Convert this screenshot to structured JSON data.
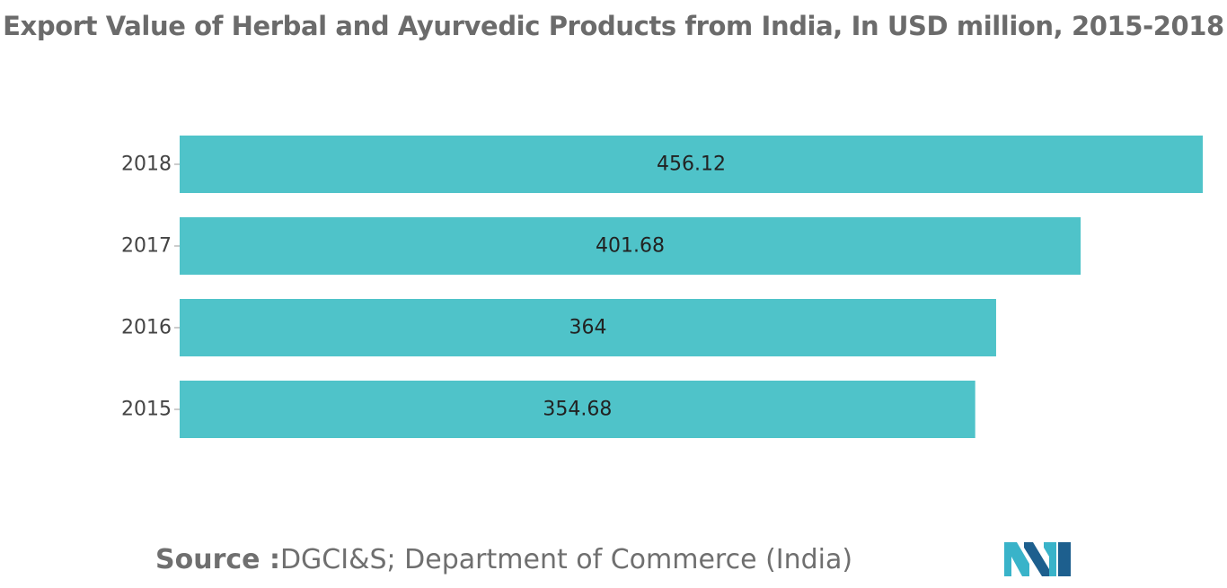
{
  "title": "Export Value of Herbal and Ayurvedic Products from India, In USD million, 2015-2018",
  "source": {
    "label": "Source :",
    "text": "DGCI&S; Department of Commerce (India)"
  },
  "colors": {
    "bar": "#4fc3c9",
    "tick_label": "#444444",
    "data_label": "#222222",
    "title": "#6b6b6b",
    "logo_dark": "#1d5f8e",
    "logo_light": "#39b3c9"
  },
  "logo": {
    "icon": "company-logo-icon"
  },
  "chart_data": {
    "type": "bar",
    "orientation": "horizontal",
    "categories": [
      "2018",
      "2017",
      "2016",
      "2015"
    ],
    "values": [
      456.12,
      401.68,
      364,
      354.68
    ],
    "value_labels": [
      "456.12",
      "401.68",
      "364",
      "354.68"
    ],
    "title": "Export Value of Herbal and Ayurvedic Products from India, In USD million, 2015-2018",
    "xlabel": "",
    "ylabel": "",
    "xlim": [
      0,
      456.12
    ],
    "grid": false,
    "legend": "none"
  }
}
